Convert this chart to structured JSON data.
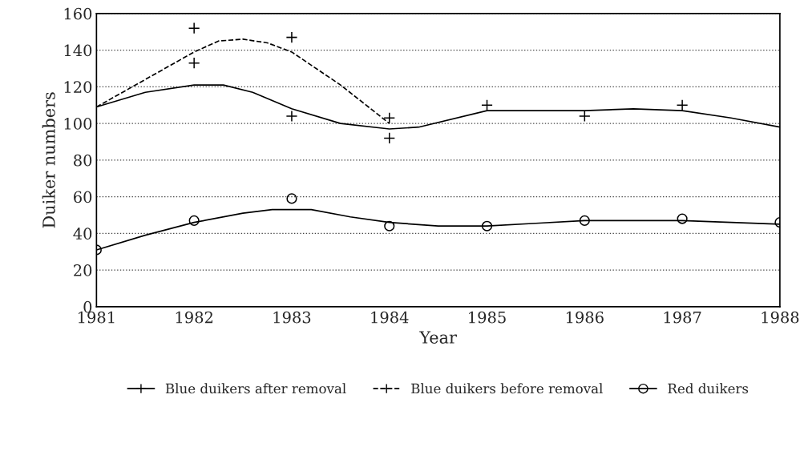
{
  "chart_data": {
    "type": "line",
    "xlabel": "Year",
    "ylabel": "Duiker numbers",
    "xlim": [
      1981,
      1988
    ],
    "xticks": [
      1981,
      1982,
      1983,
      1984,
      1985,
      1986,
      1987,
      1988
    ],
    "ylim": [
      0,
      160
    ],
    "yticks": [
      0,
      20,
      40,
      60,
      80,
      100,
      120,
      140,
      160
    ],
    "grid": "y",
    "legend": "bottom",
    "series": [
      {
        "name": "Blue duikers after removal",
        "color": "#000000",
        "line_style": "solid",
        "x": [
          1981,
          1981.5,
          1982,
          1982.3,
          1982.6,
          1983,
          1983.5,
          1984,
          1984.3,
          1985,
          1985.5,
          1986,
          1986.5,
          1987,
          1987.5,
          1988
        ],
        "values": [
          109,
          117,
          121,
          121,
          117,
          108,
          100,
          97,
          98,
          107,
          107,
          107,
          108,
          107,
          103,
          98
        ]
      },
      {
        "name": "Blue duikers before removal",
        "color": "#000000",
        "line_style": "dashed",
        "x": [
          1981,
          1981.5,
          1982,
          1982.25,
          1982.5,
          1982.75,
          1983,
          1983.5,
          1984
        ],
        "values": [
          109,
          124,
          139,
          145,
          146,
          144,
          139,
          121,
          100
        ]
      },
      {
        "name": "Red duikers",
        "color": "#000000",
        "line_style": "solid",
        "x": [
          1981,
          1981.5,
          1982,
          1982.5,
          1982.8,
          1983.2,
          1983.6,
          1984,
          1984.5,
          1985,
          1985.5,
          1986,
          1986.3,
          1987,
          1987.5,
          1988
        ],
        "values": [
          31,
          39,
          46,
          51,
          53,
          53,
          49,
          46,
          44,
          44,
          45.5,
          47,
          47,
          47,
          46,
          45
        ]
      },
      {
        "type": "scatter",
        "color": "#000000",
        "marker": "cross",
        "x": [
          1982,
          1983,
          1984,
          1985,
          1986,
          1987
        ],
        "values": [
          133,
          104,
          92,
          110,
          104,
          110
        ]
      },
      {
        "type": "scatter",
        "color": "#000000",
        "marker": "cross",
        "x": [
          1982,
          1983,
          1984
        ],
        "values": [
          152,
          147,
          103
        ]
      },
      {
        "type": "scatter",
        "color": "#000000",
        "marker": "circle",
        "x": [
          1981,
          1982,
          1983,
          1984,
          1985,
          1986,
          1987,
          1988
        ],
        "values": [
          31,
          47,
          59,
          44,
          44,
          47,
          48,
          46
        ]
      }
    ]
  }
}
